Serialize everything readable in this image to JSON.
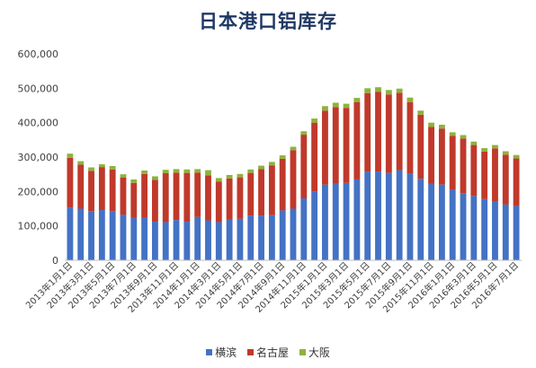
{
  "chart_data": {
    "type": "bar",
    "stacked": true,
    "title": "日本港口铝库存",
    "xlabel": "",
    "ylabel": "",
    "ylim": [
      0,
      600000
    ],
    "yticks": [
      "0",
      "100,000",
      "200,000",
      "300,000",
      "400,000",
      "500,000",
      "600,000"
    ],
    "gridlines": false,
    "legend_position": "bottom",
    "x_tick_labels": [
      "2013年1月1日",
      "2013年3月1日",
      "2013年5月1日",
      "2013年7月1日",
      "2013年9月1日",
      "2013年11月1日",
      "2014年1月1日",
      "2014年3月1日",
      "2014年5月1日",
      "2014年7月1日",
      "2014年9月1日",
      "2014年11月1日",
      "2015年1月1日",
      "2015年3月1日",
      "2015年5月1日",
      "2015年7月1日",
      "2015年9月1日",
      "2015年11月1日",
      "2016年1月1日",
      "2016年3月1日",
      "2016年5月1日",
      "2016年7月1日"
    ],
    "series": [
      {
        "name": "横滨",
        "color": "#4472c4",
        "values": [
          153000,
          150000,
          143000,
          146000,
          143000,
          132000,
          124000,
          124000,
          112000,
          111000,
          117000,
          112000,
          126000,
          116000,
          111000,
          120000,
          121000,
          130000,
          130000,
          131000,
          145000,
          150000,
          180000,
          200000,
          220000,
          222000,
          225000,
          235000,
          258000,
          258000,
          254000,
          262000,
          252000,
          237000,
          223000,
          220000,
          205000,
          195000,
          187000,
          178000,
          170000,
          162000,
          158000
        ]
      },
      {
        "name": "名古屋",
        "color": "#c0392b",
        "values": [
          145000,
          128000,
          117000,
          125000,
          121000,
          108000,
          101000,
          127000,
          122000,
          142000,
          138000,
          142000,
          129000,
          131000,
          118000,
          118000,
          120000,
          124000,
          135000,
          145000,
          150000,
          170000,
          185000,
          200000,
          215000,
          223000,
          218000,
          225000,
          228000,
          232000,
          228000,
          225000,
          208000,
          186000,
          165000,
          163000,
          157000,
          159000,
          148000,
          138000,
          155000,
          145000,
          138000
        ]
      },
      {
        "name": "大阪",
        "color": "#8db33a",
        "values": [
          12000,
          10000,
          10000,
          8000,
          10000,
          10000,
          10000,
          10000,
          10000,
          10000,
          10000,
          10000,
          10000,
          15000,
          10000,
          10000,
          10000,
          10000,
          10000,
          10000,
          10000,
          10000,
          10000,
          12000,
          13000,
          13000,
          12000,
          12000,
          14000,
          13000,
          13000,
          12000,
          13000,
          12000,
          12000,
          11000,
          10000,
          10000,
          10000,
          10000,
          10000,
          10000,
          10000
        ]
      }
    ]
  }
}
